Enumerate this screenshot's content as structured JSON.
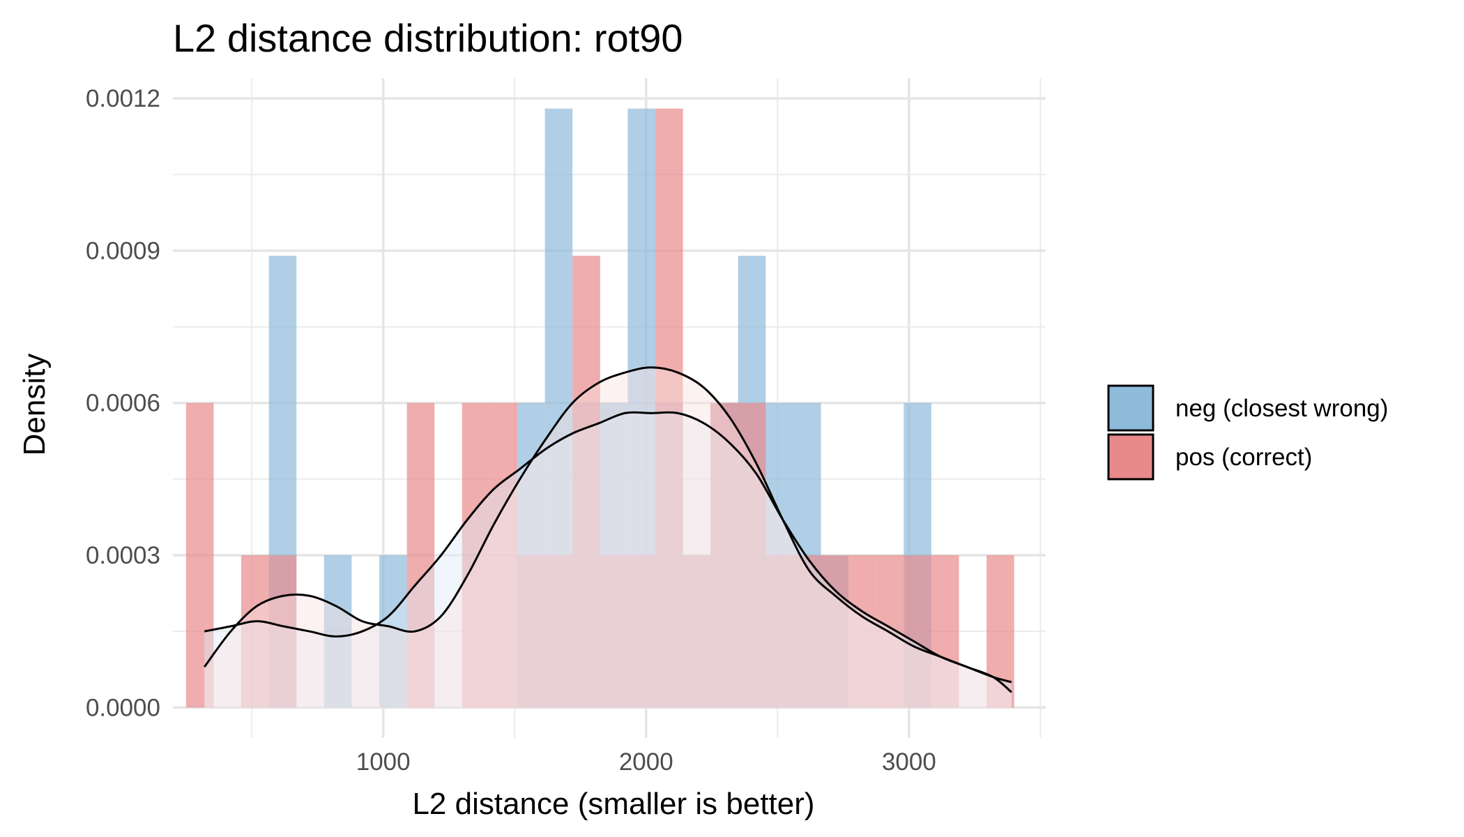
{
  "chart_data": {
    "type": "histogram",
    "title": "L2 distance distribution: rot90",
    "xlabel": "L2 distance (smaller is better)",
    "ylabel": "Density",
    "xlim": [
      200,
      3520
    ],
    "ylim": [
      -6e-05,
      0.00124
    ],
    "x_ticks": [
      1000,
      2000,
      3000
    ],
    "x_tick_labels": [
      "1000",
      "2000",
      "3000"
    ],
    "x_minor_ticks": [
      500,
      1500,
      2500,
      3500
    ],
    "y_ticks": [
      0,
      0.0003,
      0.0006,
      0.0009,
      0.0012
    ],
    "y_tick_labels": [
      "0.0000",
      "0.0003",
      "0.0006",
      "0.0009",
      "0.0012"
    ],
    "y_minor_ticks": [
      0.00015,
      0.00045,
      0.00075,
      0.00105
    ],
    "grid": true,
    "legend_position": "right",
    "bin_width": 105,
    "bin_starts": [
      250,
      355,
      460,
      565,
      670,
      775,
      880,
      985,
      1090,
      1195,
      1300,
      1405,
      1510,
      1615,
      1720,
      1825,
      1930,
      2035,
      2140,
      2245,
      2350,
      2455,
      2560,
      2665,
      2770,
      2875,
      2980,
      3085,
      3190,
      3295
    ],
    "series": [
      {
        "name": "neg (closest wrong)",
        "color": "#8fbbdb",
        "values": [
          0,
          0,
          0,
          0.00089,
          0,
          0.0003,
          0,
          0.0003,
          0,
          0,
          0,
          0,
          0.0006,
          0.00118,
          0.0006,
          0.0006,
          0.00118,
          0.0006,
          0.0003,
          0.0006,
          0.00089,
          0.0006,
          0.0006,
          0.0003,
          0,
          0,
          0.0006,
          0,
          0,
          0
        ],
        "density_curve": [
          [
            320,
            0.00015
          ],
          [
            420,
            0.00016
          ],
          [
            520,
            0.00017
          ],
          [
            620,
            0.00016
          ],
          [
            720,
            0.00015
          ],
          [
            820,
            0.00014
          ],
          [
            920,
            0.00015
          ],
          [
            1020,
            0.00018
          ],
          [
            1120,
            0.00024
          ],
          [
            1220,
            0.0003
          ],
          [
            1320,
            0.00037
          ],
          [
            1420,
            0.00043
          ],
          [
            1520,
            0.00047
          ],
          [
            1620,
            0.00051
          ],
          [
            1720,
            0.00054
          ],
          [
            1820,
            0.00056
          ],
          [
            1920,
            0.00058
          ],
          [
            2020,
            0.00058
          ],
          [
            2120,
            0.00058
          ],
          [
            2220,
            0.00056
          ],
          [
            2320,
            0.00052
          ],
          [
            2420,
            0.00046
          ],
          [
            2520,
            0.00037
          ],
          [
            2620,
            0.00029
          ],
          [
            2720,
            0.00023
          ],
          [
            2820,
            0.00019
          ],
          [
            2920,
            0.00016
          ],
          [
            3020,
            0.00013
          ],
          [
            3120,
            0.0001
          ],
          [
            3220,
            8e-05
          ],
          [
            3320,
            6e-05
          ],
          [
            3390,
            5e-05
          ]
        ]
      },
      {
        "name": "pos (correct)",
        "color": "#e88a8c",
        "values": [
          0.0006,
          0,
          0.0003,
          0.0003,
          0,
          0,
          0,
          0,
          0.0006,
          0,
          0.0006,
          0.0006,
          0.0003,
          0.0003,
          0.00089,
          0.0003,
          0.0003,
          0.00118,
          0.0003,
          0.0006,
          0.0006,
          0.0003,
          0.0003,
          0.0003,
          0.0003,
          0.0003,
          0.0003,
          0.0003,
          0,
          0.0003
        ],
        "density_curve": [
          [
            320,
            8e-05
          ],
          [
            420,
            0.00015
          ],
          [
            520,
            0.0002
          ],
          [
            620,
            0.00022
          ],
          [
            720,
            0.00022
          ],
          [
            820,
            0.0002
          ],
          [
            920,
            0.00017
          ],
          [
            1020,
            0.00016
          ],
          [
            1120,
            0.00015
          ],
          [
            1220,
            0.00018
          ],
          [
            1320,
            0.00026
          ],
          [
            1420,
            0.00036
          ],
          [
            1520,
            0.00045
          ],
          [
            1620,
            0.00053
          ],
          [
            1720,
            0.0006
          ],
          [
            1820,
            0.00064
          ],
          [
            1920,
            0.00066
          ],
          [
            2020,
            0.00067
          ],
          [
            2120,
            0.00066
          ],
          [
            2220,
            0.00063
          ],
          [
            2320,
            0.00057
          ],
          [
            2420,
            0.00048
          ],
          [
            2520,
            0.00037
          ],
          [
            2620,
            0.00027
          ],
          [
            2720,
            0.00022
          ],
          [
            2820,
            0.00018
          ],
          [
            2920,
            0.00015
          ],
          [
            3020,
            0.00012
          ],
          [
            3120,
            0.0001
          ],
          [
            3220,
            8e-05
          ],
          [
            3320,
            6e-05
          ],
          [
            3390,
            3e-05
          ]
        ]
      }
    ]
  }
}
